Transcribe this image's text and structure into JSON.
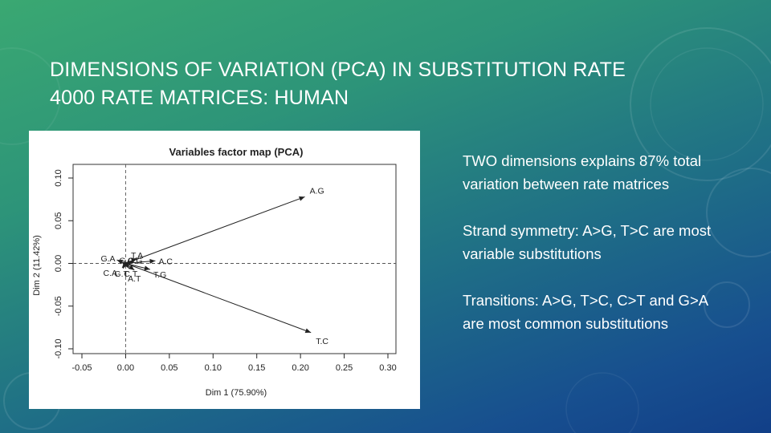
{
  "slide": {
    "title_line1": "DIMENSIONS OF VARIATION (PCA) IN SUBSTITUTION RATE",
    "title_line2": "4000 RATE MATRICES: HUMAN"
  },
  "bullets": [
    "TWO dimensions explains 87% total variation between rate matrices",
    "Strand symmetry: A>G, T>C are most variable substitutions",
    "Transitions: A>G, T>C, C>T and G>A are most common substitutions"
  ],
  "chart_data": {
    "type": "scatter",
    "title": "Variables factor map (PCA)",
    "xlabel": "Dim 1 (75.90%)",
    "ylabel": "Dim 2 (11.42%)",
    "xlim": [
      -0.05,
      0.3
    ],
    "ylim": [
      -0.1,
      0.1
    ],
    "xticks": [
      "-0.05",
      "0.00",
      "0.05",
      "0.10",
      "0.15",
      "0.20",
      "0.25",
      "0.30"
    ],
    "yticks": [
      "-0.10",
      "-0.05",
      "0.00",
      "0.05",
      "0.10"
    ],
    "vectors": [
      {
        "label": "A.G",
        "x": 0.205,
        "y": 0.078
      },
      {
        "label": "T.C",
        "x": 0.212,
        "y": -0.081
      },
      {
        "label": "A.C",
        "x": 0.034,
        "y": 0.003
      },
      {
        "label": "T.G",
        "x": 0.028,
        "y": -0.007
      },
      {
        "label": "G.A",
        "x": -0.01,
        "y": 0.004
      },
      {
        "label": "T.A",
        "x": 0.013,
        "y": 0.006
      },
      {
        "label": "C.G",
        "x": 0.009,
        "y": 0.002
      },
      {
        "label": "G.C",
        "x": 0.003,
        "y": 0.002
      },
      {
        "label": "C.A",
        "x": -0.004,
        "y": -0.005
      },
      {
        "label": "G.T",
        "x": -0.003,
        "y": -0.006
      },
      {
        "label": "C.T",
        "x": 0.004,
        "y": -0.006
      },
      {
        "label": "A.T",
        "x": 0.01,
        "y": -0.008
      }
    ],
    "dashed_axes": true
  },
  "colors": {
    "background_top": "#3aa872",
    "background_bottom": "#123f88",
    "text": "#ffffff",
    "chart_ink": "#222222"
  }
}
